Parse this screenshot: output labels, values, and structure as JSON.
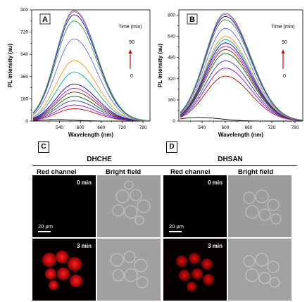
{
  "chart_data": [
    {
      "panel": "A",
      "type": "line",
      "xlabel": "Wavelength (nm)",
      "ylabel": "PL intensity (au)",
      "xlim": [
        460,
        800
      ],
      "ylim": [
        0,
        900
      ],
      "xticks": [
        540,
        600,
        660,
        720,
        780
      ],
      "yticks": [
        0,
        180,
        360,
        540,
        720,
        900
      ],
      "extra_yticks": [
        90,
        270,
        450,
        630,
        810
      ],
      "legend": {
        "title": "Time (min)",
        "top": "90",
        "bottom": "0",
        "placement": "top-right"
      },
      "series_peak_wavelength": 582,
      "series": [
        {
          "color": "#000000",
          "peak": 12,
          "peak_wavelength": 530
        },
        {
          "color": "#cc0000",
          "peak": 100
        },
        {
          "color": "#7f00ff",
          "peak": 130
        },
        {
          "color": "#3333cc",
          "peak": 165
        },
        {
          "color": "#006600",
          "peak": 200
        },
        {
          "color": "#663300",
          "peak": 235
        },
        {
          "color": "#cc00cc",
          "peak": 265
        },
        {
          "color": "#0000cc",
          "peak": 300
        },
        {
          "color": "#00aaaa",
          "peak": 395
        },
        {
          "color": "#ff9900",
          "peak": 490
        },
        {
          "color": "#6666ff",
          "peak": 665
        },
        {
          "color": "#339933",
          "peak": 810
        },
        {
          "color": "#0000ff",
          "peak": 860
        },
        {
          "color": "#ff3399",
          "peak": 885
        },
        {
          "color": "#339966",
          "peak": 895
        }
      ]
    },
    {
      "panel": "B",
      "type": "line",
      "xlabel": "Wavelength (nm)",
      "ylabel": "PL intensity (au)",
      "xlim": [
        480,
        800
      ],
      "ylim": [
        0,
        840
      ],
      "xticks": [
        540,
        600,
        660,
        720,
        780
      ],
      "yticks": [
        0,
        160,
        320,
        480,
        640,
        800
      ],
      "extra_yticks": [
        80,
        240,
        400,
        560,
        720
      ],
      "legend": {
        "title": "Time (min)",
        "top": "90",
        "bottom": "0",
        "placement": "top-right"
      },
      "series_peak_wavelength": 600,
      "series": [
        {
          "color": "#000000",
          "peak": 28,
          "peak_wavelength": 530
        },
        {
          "color": "#cc0000",
          "peak": 340
        },
        {
          "color": "#7f00ff",
          "peak": 400
        },
        {
          "color": "#3333cc",
          "peak": 455
        },
        {
          "color": "#006600",
          "peak": 510
        },
        {
          "color": "#663300",
          "peak": 540
        },
        {
          "color": "#cc00cc",
          "peak": 565
        },
        {
          "color": "#0000cc",
          "peak": 590
        },
        {
          "color": "#00aaaa",
          "peak": 615
        },
        {
          "color": "#ff9900",
          "peak": 640
        },
        {
          "color": "#6666ff",
          "peak": 700
        },
        {
          "color": "#339933",
          "peak": 765
        },
        {
          "color": "#0000ff",
          "peak": 790
        },
        {
          "color": "#ff3399",
          "peak": 805
        },
        {
          "color": "#339966",
          "peak": 815
        }
      ]
    }
  ],
  "micro": {
    "C": {
      "letter": "C",
      "title": "DHCHE",
      "red_channel": "Red channel",
      "bright_field": "Bright field",
      "t0": "0 min",
      "t3": "3 min",
      "scale": "20 μm"
    },
    "D": {
      "letter": "D",
      "title": "DHSAN",
      "red_channel": "Red channel",
      "bright_field": "Bright field",
      "t0": "0 min",
      "t3": "3 min",
      "scale": "20 μm"
    }
  }
}
